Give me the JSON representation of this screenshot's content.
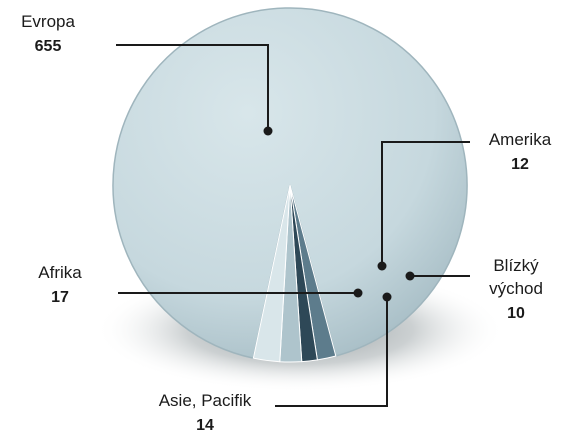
{
  "chart_data": {
    "type": "pie",
    "title": "",
    "categories": [
      "Evropa",
      "Amerika",
      "Blízký východ",
      "Asie, Pacifik",
      "Afrika"
    ],
    "values": [
      655,
      12,
      10,
      14,
      17
    ],
    "labels": [
      {
        "name": "Evropa",
        "value": "655"
      },
      {
        "name": "Amerika",
        "value": "12"
      },
      {
        "name_lines": [
          "Blízký",
          "východ"
        ],
        "value": "10"
      },
      {
        "name": "Asie, Pacifik",
        "value": "14"
      },
      {
        "name": "Afrika",
        "value": "17"
      }
    ],
    "colors": {
      "main": "#c9dbe1",
      "main_edge": "#9fb5bd",
      "amerika": "#5d7c8c",
      "blizky_vychod": "#2e4857",
      "asie_pacifik": "#aec4cc",
      "afrika": "#d9e6ea",
      "shadow": "#7f8a8e"
    },
    "legend": "none"
  }
}
